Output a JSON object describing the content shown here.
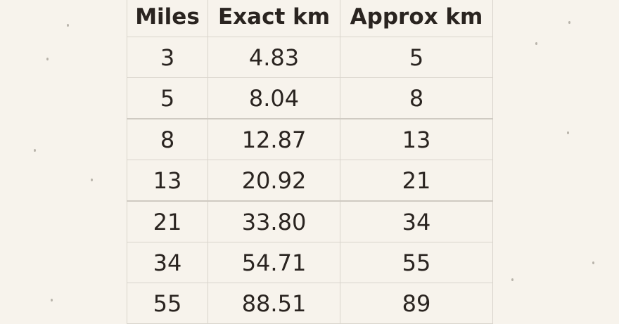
{
  "table": {
    "headers": [
      "Miles",
      "Exact km",
      "Approx km"
    ],
    "rows": [
      [
        "3",
        "4.83",
        "5"
      ],
      [
        "5",
        "8.04",
        "8"
      ],
      [
        "8",
        "12.87",
        "13"
      ],
      [
        "13",
        "20.92",
        "21"
      ],
      [
        "21",
        "33.80",
        "34"
      ],
      [
        "34",
        "54.71",
        "55"
      ],
      [
        "55",
        "88.51",
        "89"
      ]
    ]
  }
}
